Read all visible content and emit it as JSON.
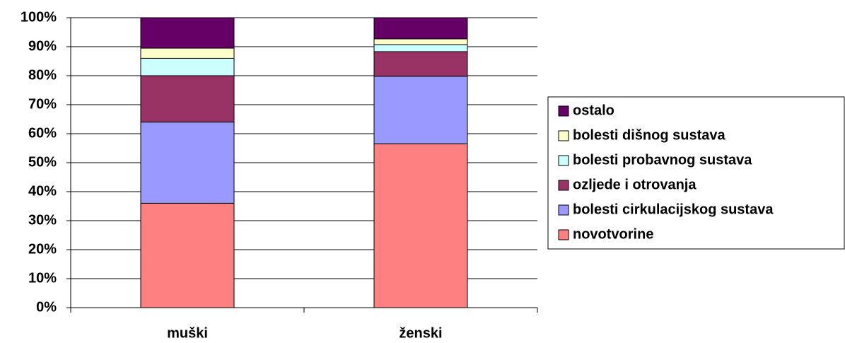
{
  "chart_data": {
    "type": "stacked_bar_100",
    "categories": [
      "muški",
      "ženski"
    ],
    "series": [
      {
        "name": "novotvorine",
        "color": "#ff8080",
        "values": [
          36,
          56.5
        ]
      },
      {
        "name": "bolesti cirkulacijskog sustava",
        "color": "#9999ff",
        "values": [
          28,
          23.3
        ]
      },
      {
        "name": "ozljede i otrovanja",
        "color": "#993366",
        "values": [
          16,
          8.5
        ]
      },
      {
        "name": "bolesti probavnog sustava",
        "color": "#ccffff",
        "values": [
          6,
          2.4
        ]
      },
      {
        "name": "bolesti dišnog sustava",
        "color": "#ffffcc",
        "values": [
          3.5,
          2
        ]
      },
      {
        "name": "ostalo",
        "color": "#660066",
        "values": [
          10.5,
          7.3
        ]
      }
    ],
    "ylim": [
      0,
      100
    ],
    "yticks": [
      {
        "value": 0,
        "label": "0%"
      },
      {
        "value": 10,
        "label": "10%"
      },
      {
        "value": 20,
        "label": "20%"
      },
      {
        "value": 30,
        "label": "30%"
      },
      {
        "value": 40,
        "label": "40%"
      },
      {
        "value": 50,
        "label": "50%"
      },
      {
        "value": 60,
        "label": "60%"
      },
      {
        "value": 70,
        "label": "70%"
      },
      {
        "value": 80,
        "label": "80%"
      },
      {
        "value": 90,
        "label": "90%"
      },
      {
        "value": 100,
        "label": "100%"
      }
    ],
    "grid": true,
    "legend": "right"
  }
}
